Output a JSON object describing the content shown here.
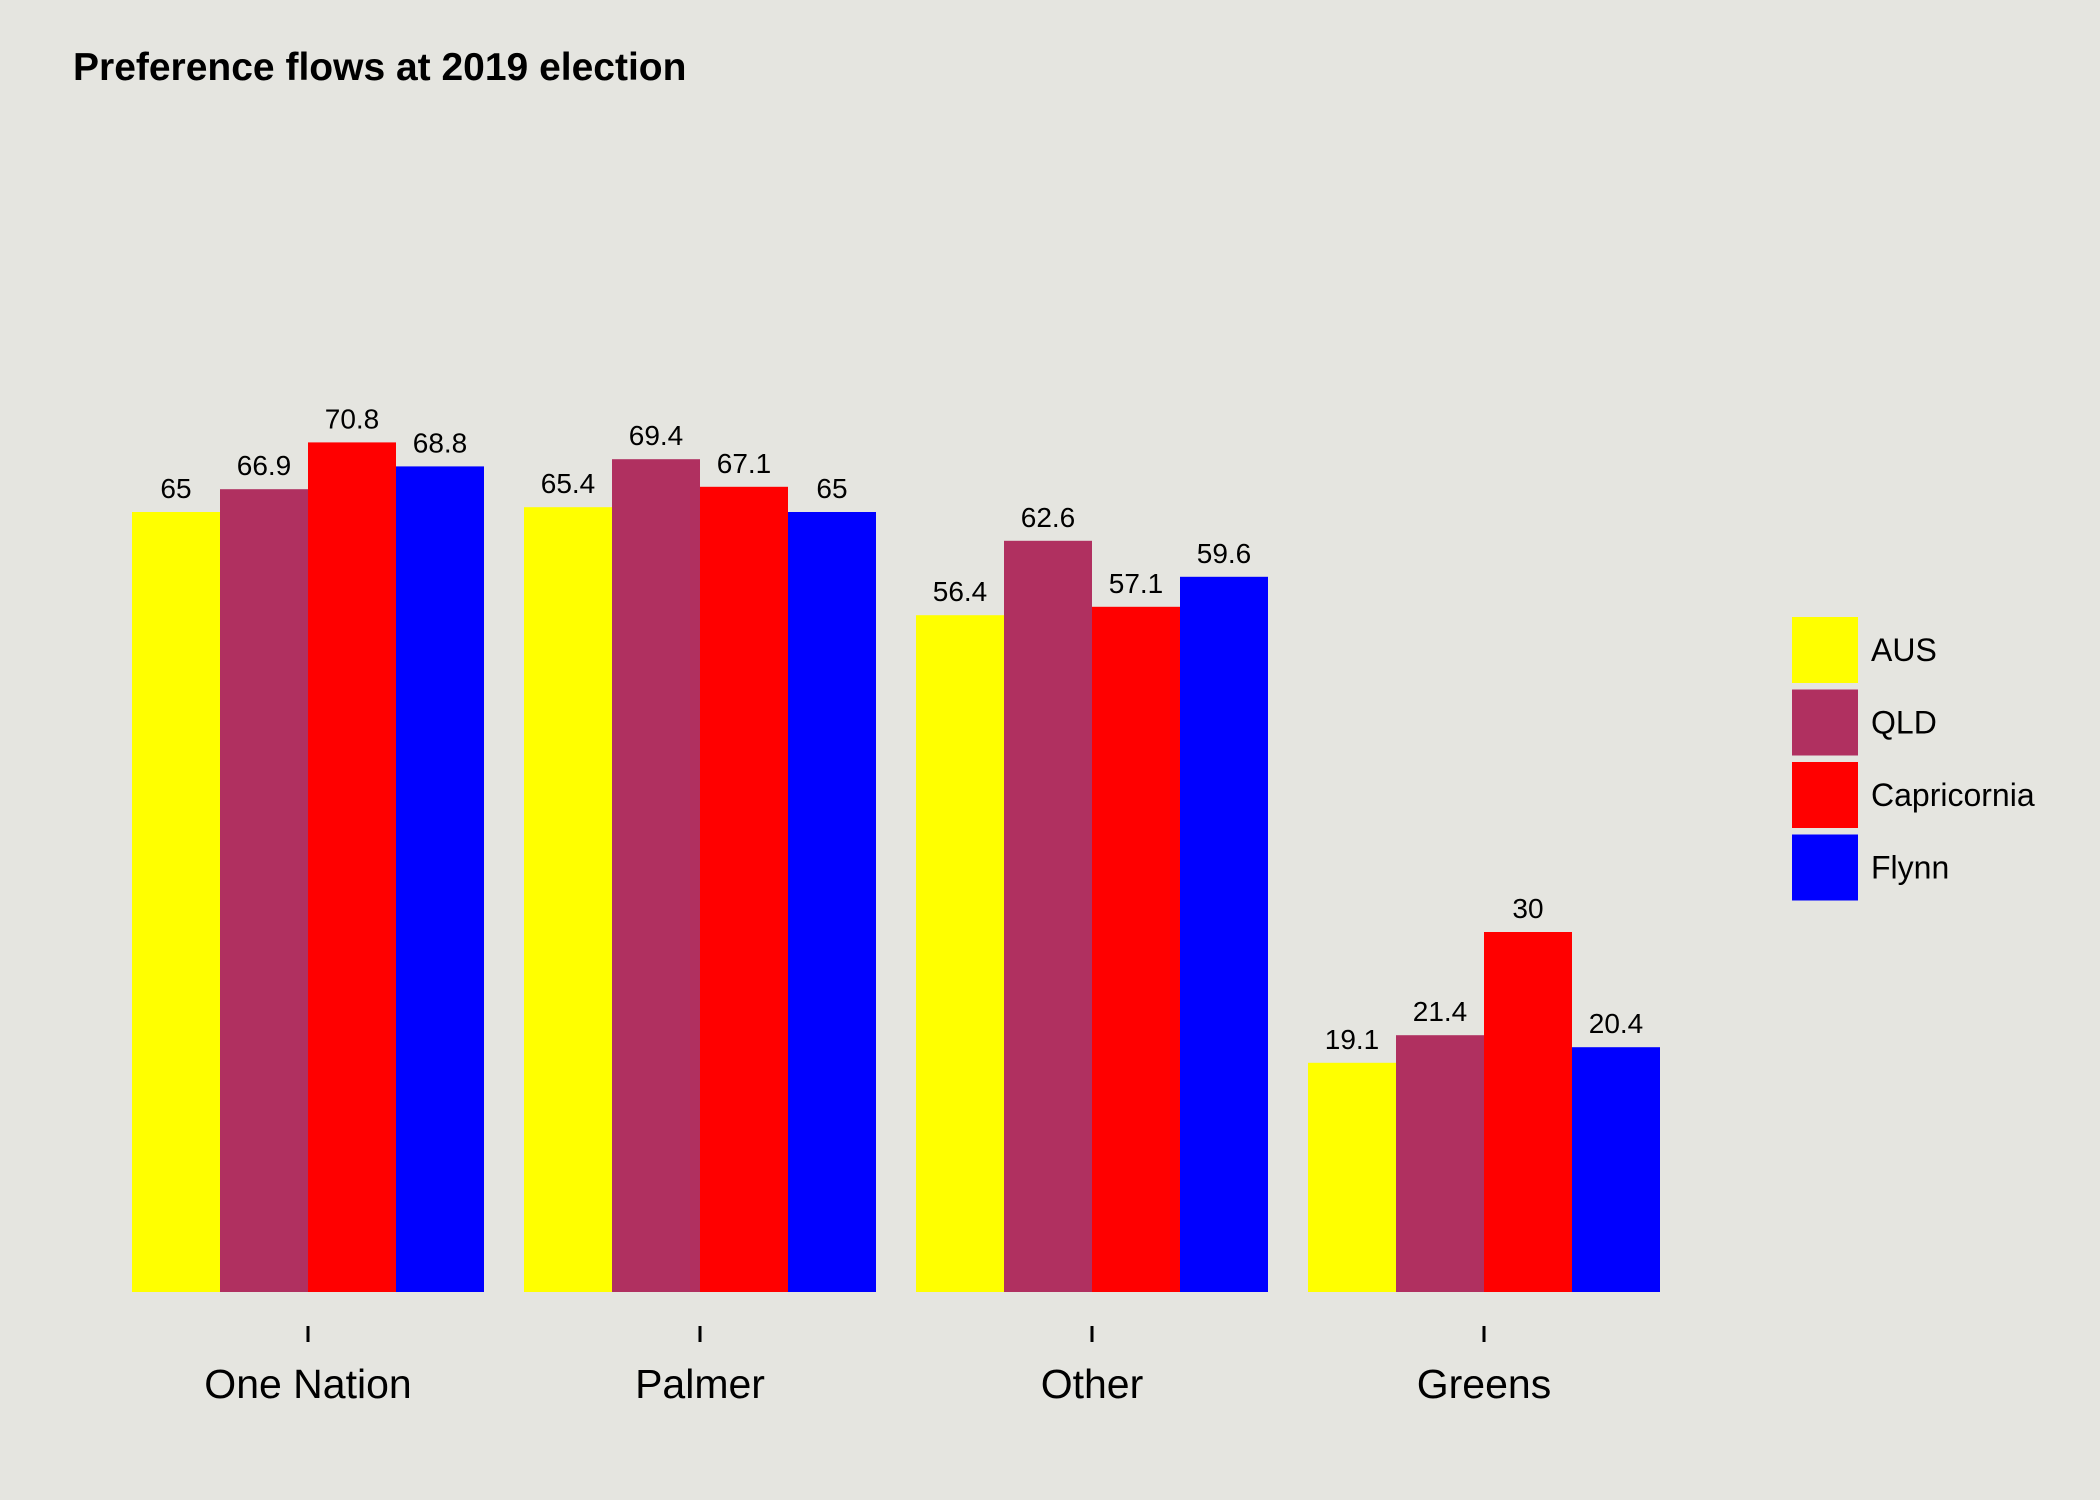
{
  "chart_data": {
    "type": "bar",
    "title": "Preference flows at 2019 election",
    "xlabel": "",
    "ylabel": "",
    "categories": [
      "One Nation",
      "Palmer",
      "Other",
      "Greens"
    ],
    "series": [
      {
        "name": "AUS",
        "color": "#ffff00",
        "values": [
          65,
          65.4,
          56.4,
          19.1
        ]
      },
      {
        "name": "QLD",
        "color": "#b03060",
        "values": [
          66.9,
          69.4,
          62.6,
          21.4
        ]
      },
      {
        "name": "Capricornia",
        "color": "#ff0000",
        "values": [
          70.8,
          67.1,
          57.1,
          30
        ]
      },
      {
        "name": "Flynn",
        "color": "#0000ff",
        "values": [
          68.8,
          65,
          59.6,
          20.4
        ]
      }
    ],
    "ylim": [
      0,
      100
    ],
    "grid": false,
    "y_axis_visible": false,
    "legend_position": "right",
    "background_color": "#e5e5e0"
  }
}
